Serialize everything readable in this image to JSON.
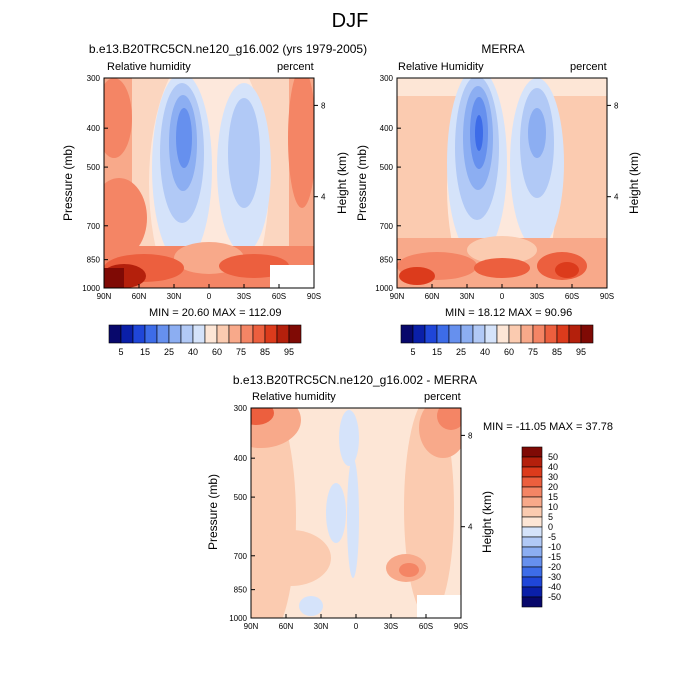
{
  "title": "DJF",
  "panels": [
    {
      "name": "model",
      "title": "b.e13.B20TRC5CN.ne120_g16.002 (yrs 1979-2005)",
      "left_label": "Relative humidity",
      "right_label": "percent",
      "ylabel": "Pressure (mb)",
      "y2label": "Height (km)",
      "stats": "MIN = 20.60  MAX = 112.09"
    },
    {
      "name": "obs",
      "title": "MERRA",
      "left_label": "Relative Humidity",
      "right_label": "percent",
      "ylabel": "Pressure (mb)",
      "y2label": "Height (km)",
      "stats": "MIN = 18.12  MAX = 90.96"
    },
    {
      "name": "diff",
      "title": "b.e13.B20TRC5CN.ne120_g16.002 - MERRA",
      "left_label": "Relative humidity",
      "right_label": "percent",
      "ylabel": "Pressure (mb)",
      "y2label": "Height (km)",
      "stats": "MIN = -11.05  MAX = 37.78"
    }
  ],
  "chart_data": [
    {
      "type": "heatmap",
      "title": "b.e13.B20TRC5CN.ne120_g16.002 (yrs 1979-2005)",
      "subtitle_left": "Relative humidity",
      "subtitle_right": "percent",
      "x_ticks": [
        "90N",
        "60N",
        "30N",
        "0",
        "30S",
        "60S",
        "90S"
      ],
      "y_ticks": [
        "300",
        "400",
        "500",
        "700",
        "850",
        "1000"
      ],
      "y_tick_values": [
        300,
        400,
        500,
        700,
        850,
        1000
      ],
      "y2_ticks": [
        "8",
        "4"
      ],
      "y2_tick_values": [
        8,
        4
      ],
      "xlabel": "",
      "ylabel": "Pressure (mb)",
      "y2label": "Height (km)",
      "xlim": [
        -90,
        90
      ],
      "ylim": [
        1000,
        300
      ],
      "y2lim": [
        0,
        9.2
      ],
      "colorbar_levels": [
        "5",
        "15",
        "25",
        "40",
        "60",
        "75",
        "85",
        "95"
      ],
      "min": 20.6,
      "max": 112.09
    },
    {
      "type": "heatmap",
      "title": "MERRA",
      "subtitle_left": "Relative Humidity",
      "subtitle_right": "percent",
      "x_ticks": [
        "90N",
        "60N",
        "30N",
        "0",
        "30S",
        "60S",
        "90S"
      ],
      "y_ticks": [
        "300",
        "400",
        "500",
        "700",
        "850",
        "1000"
      ],
      "y_tick_values": [
        300,
        400,
        500,
        700,
        850,
        1000
      ],
      "y2_ticks": [
        "8",
        "4"
      ],
      "y2_tick_values": [
        8,
        4
      ],
      "ylabel": "Pressure (mb)",
      "y2label": "Height (km)",
      "xlim": [
        -90,
        90
      ],
      "ylim": [
        1000,
        300
      ],
      "y2lim": [
        0,
        9.2
      ],
      "colorbar_levels": [
        "5",
        "15",
        "25",
        "40",
        "60",
        "75",
        "85",
        "95"
      ],
      "min": 18.12,
      "max": 90.96
    },
    {
      "type": "heatmap",
      "title": "b.e13.B20TRC5CN.ne120_g16.002 - MERRA",
      "subtitle_left": "Relative humidity",
      "subtitle_right": "percent",
      "x_ticks": [
        "90N",
        "60N",
        "30N",
        "0",
        "30S",
        "60S",
        "90S"
      ],
      "y_ticks": [
        "300",
        "400",
        "500",
        "700",
        "850",
        "1000"
      ],
      "y_tick_values": [
        300,
        400,
        500,
        700,
        850,
        1000
      ],
      "y2_ticks": [
        "8",
        "4"
      ],
      "y2_tick_values": [
        8,
        4
      ],
      "ylabel": "Pressure (mb)",
      "y2label": "Height (km)",
      "xlim": [
        -90,
        90
      ],
      "ylim": [
        1000,
        300
      ],
      "y2lim": [
        0,
        9.2
      ],
      "colorbar_levels": [
        "50",
        "40",
        "30",
        "20",
        "15",
        "10",
        "5",
        "0",
        "-5",
        "-10",
        "-15",
        "-20",
        "-30",
        "-40",
        "-50"
      ],
      "min": -11.05,
      "max": 37.78
    }
  ],
  "colors": {
    "abs_palette": [
      "#08086b",
      "#0a1fa8",
      "#1f46d8",
      "#3d6ce8",
      "#6690ee",
      "#8caef2",
      "#b1c9f6",
      "#d5e3fa",
      "#fde6d6",
      "#fbcbb0",
      "#f8a98a",
      "#f48565",
      "#ec5f3e",
      "#dc3b1c",
      "#b4200c",
      "#7f0a05"
    ],
    "diff_palette": [
      "#7f0a05",
      "#b4200c",
      "#dc3b1c",
      "#ec5f3e",
      "#f48565",
      "#f8a98a",
      "#fbcbb0",
      "#fde6d6",
      "#d5e3fa",
      "#b1c9f6",
      "#8caef2",
      "#6690ee",
      "#3d6ce8",
      "#1f46d8",
      "#0a1fa8",
      "#08086b"
    ]
  }
}
